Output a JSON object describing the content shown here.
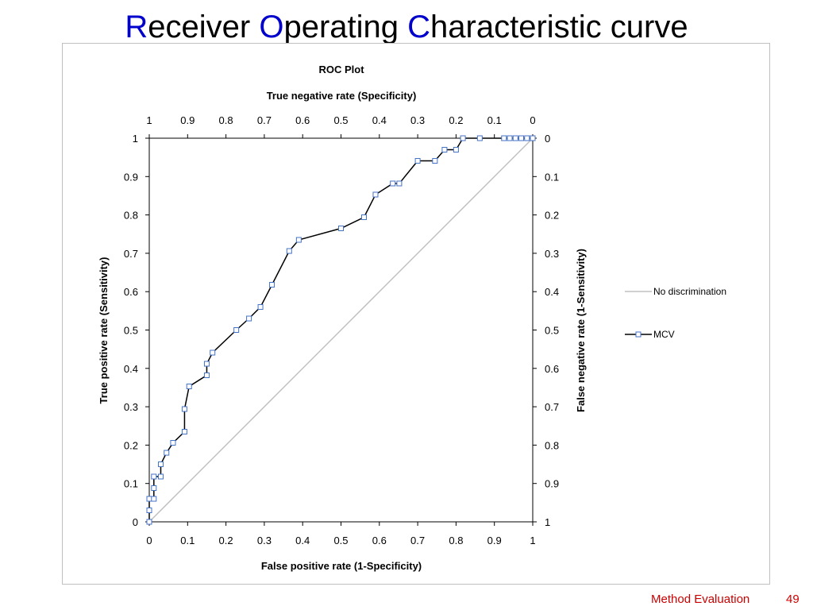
{
  "slide": {
    "title_parts": [
      {
        "cap": "R",
        "rest": "eceiver "
      },
      {
        "cap": "O",
        "rest": "perating "
      },
      {
        "cap": "C",
        "rest": "haracteristic curve"
      }
    ],
    "footer_label": "Method Evaluation",
    "page_number": "49",
    "colors": {
      "title_caps": "#0000cc",
      "footer": "#cc0000",
      "curve": "#000000",
      "marker_stroke": "#4472c4",
      "diagonal": "#c0c0c0"
    }
  },
  "chart_data": {
    "type": "line",
    "title": "ROC Plot",
    "xlabel": "False positive rate (1-Specificity)",
    "ylabel": "True positive rate (Sensitivity)",
    "x2label": "True negative rate (Specificity)",
    "y2label": "False negative rate (1-Sensitivity)",
    "xlim": [
      0,
      1
    ],
    "ylim": [
      0,
      1
    ],
    "x_ticks": [
      "0",
      "0.1",
      "0.2",
      "0.3",
      "0.4",
      "0.5",
      "0.6",
      "0.7",
      "0.8",
      "0.9",
      "1"
    ],
    "y_ticks": [
      "0",
      "0.1",
      "0.2",
      "0.3",
      "0.4",
      "0.5",
      "0.6",
      "0.7",
      "0.8",
      "0.9",
      "1"
    ],
    "x2_ticks": [
      "1",
      "0.9",
      "0.8",
      "0.7",
      "0.6",
      "0.5",
      "0.4",
      "0.3",
      "0.2",
      "0.1",
      "0"
    ],
    "y2_ticks": [
      "1",
      "0.9",
      "0.8",
      "0.7",
      "0.6",
      "0.5",
      "0.4",
      "0.3",
      "0.2",
      "0.1",
      "0"
    ],
    "grid": false,
    "legend_position": "right",
    "series": [
      {
        "name": "No discrimination",
        "style": "line",
        "points": [
          [
            0,
            0
          ],
          [
            1,
            1
          ]
        ]
      },
      {
        "name": "MCV",
        "style": "line-markers",
        "points": [
          [
            0,
            0
          ],
          [
            0,
            0.03
          ],
          [
            0,
            0.06
          ],
          [
            0.012,
            0.06
          ],
          [
            0.012,
            0.088
          ],
          [
            0.012,
            0.118
          ],
          [
            0.03,
            0.118
          ],
          [
            0.03,
            0.15
          ],
          [
            0.045,
            0.18
          ],
          [
            0.062,
            0.206
          ],
          [
            0.092,
            0.235
          ],
          [
            0.092,
            0.294
          ],
          [
            0.104,
            0.353
          ],
          [
            0.15,
            0.382
          ],
          [
            0.15,
            0.412
          ],
          [
            0.165,
            0.441
          ],
          [
            0.227,
            0.5
          ],
          [
            0.26,
            0.53
          ],
          [
            0.29,
            0.56
          ],
          [
            0.32,
            0.618
          ],
          [
            0.365,
            0.706
          ],
          [
            0.39,
            0.735
          ],
          [
            0.5,
            0.765
          ],
          [
            0.56,
            0.794
          ],
          [
            0.59,
            0.853
          ],
          [
            0.635,
            0.882
          ],
          [
            0.652,
            0.882
          ],
          [
            0.7,
            0.941
          ],
          [
            0.745,
            0.941
          ],
          [
            0.77,
            0.97
          ],
          [
            0.8,
            0.97
          ],
          [
            0.818,
            1
          ],
          [
            0.862,
            1
          ],
          [
            0.925,
            1
          ],
          [
            0.94,
            1
          ],
          [
            0.955,
            1
          ],
          [
            0.97,
            1
          ],
          [
            0.985,
            1
          ],
          [
            1,
            1
          ]
        ]
      }
    ]
  }
}
